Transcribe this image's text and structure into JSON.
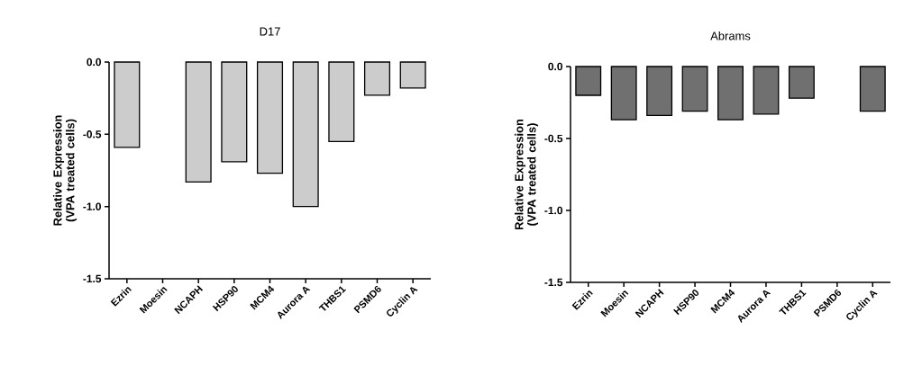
{
  "chart_data": [
    {
      "type": "bar",
      "title": "D17",
      "ylabel": "Relative Expression (VPA treated cells)",
      "categories": [
        "Ezrin",
        "Moesin",
        "NCAPH",
        "HSP90",
        "MCM4",
        "Aurora A",
        "THBS1",
        "PSMD6",
        "Cyclin A"
      ],
      "values": [
        -0.59,
        null,
        -0.83,
        -0.69,
        -0.77,
        -1.0,
        -0.55,
        -0.23,
        -0.18
      ],
      "color": "#cccccc",
      "ylim": [
        -1.5,
        0
      ],
      "yticks": [
        {
          "value": -1.5,
          "label": "-1.5"
        },
        {
          "value": -1.0,
          "label": "-1.0"
        },
        {
          "value": -0.5,
          "label": "-0.5"
        },
        {
          "value": 0,
          "label": "0.0"
        }
      ]
    },
    {
      "type": "bar",
      "title": "Abrams",
      "ylabel": "Relative Expression (VPA treated cells)",
      "categories": [
        "Ezrin",
        "Moesin",
        "NCAPH",
        "HSP90",
        "MCM4",
        "Aurora A",
        "THBS1",
        "PSMD6",
        "Cyclin A"
      ],
      "values": [
        -0.2,
        -0.37,
        -0.34,
        -0.31,
        -0.37,
        -0.33,
        -0.22,
        null,
        -0.31
      ],
      "color": "#707070",
      "ylim": [
        -1.5,
        0
      ],
      "yticks": [
        {
          "value": -1.5,
          "label": "-1.5"
        },
        {
          "value": -1.0,
          "label": "-1.0"
        },
        {
          "value": -0.5,
          "label": "-0.5"
        },
        {
          "value": 0,
          "label": "0.0"
        }
      ]
    }
  ]
}
